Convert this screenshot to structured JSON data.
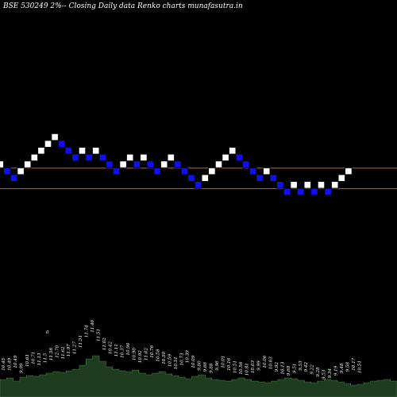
{
  "chart_data": {
    "type": "renko",
    "title": "BSE 530249 2%-- Closing Daily data Renko charts munafasutra.in",
    "colors": {
      "background": "#000000",
      "up_brick": "#ffffff",
      "down_brick": "#1010ee",
      "brick_border": "#000000",
      "guide_line": "#c8641e",
      "volume_fill": "#1e3d1e",
      "volume_stroke": "#4a7a4a"
    },
    "brick_step_levels": [
      0,
      -1,
      -2,
      -1,
      0,
      1,
      2,
      3,
      4,
      3,
      2,
      1,
      2,
      1,
      2,
      1,
      0,
      -1,
      0,
      1,
      0,
      1,
      0,
      -1,
      0,
      1,
      0,
      -1,
      -2,
      -3,
      -2,
      -1,
      0,
      1,
      2,
      1,
      0,
      -1,
      -2,
      -1,
      -2,
      -3,
      -4,
      -3,
      -4,
      -3,
      -4,
      -3,
      -4,
      -3,
      -2,
      -1
    ],
    "guide_levels": [
      -1,
      -4
    ],
    "volume_profile": [
      22,
      24,
      20,
      25,
      27,
      26,
      28,
      30,
      32,
      31,
      33,
      35,
      40,
      48,
      52,
      45,
      38,
      35,
      33,
      32,
      34,
      30,
      28,
      30,
      32,
      29,
      27,
      25,
      23,
      26,
      28,
      24,
      22,
      21,
      20,
      22,
      24,
      22,
      20,
      19,
      18,
      20,
      22,
      24,
      23,
      21,
      19,
      18,
      20,
      22,
      21,
      19,
      17,
      15,
      16,
      18,
      20,
      21,
      22,
      20
    ],
    "tick_labels": [
      "10.45",
      "10.49",
      "10.49",
      "9.99",
      "10.61",
      "10.71",
      "11.13",
      "11.5",
      "11.58",
      "12.70",
      "11.62",
      "11.97",
      "11.27",
      "11.51",
      "11.74",
      "11.46",
      "11.51",
      "11.02",
      "10.42",
      "11.11",
      "10.37",
      "10.90",
      "10.90",
      "10.92",
      "11.02",
      "10.76",
      "10.58",
      "10.50",
      "10.59",
      "10.51",
      "10.73",
      "10.39",
      "10.09",
      "9.80",
      "9.66",
      "9.88",
      "9.96",
      "10.01",
      "10.16",
      "10.51",
      "10.56",
      "10.81",
      "10.03",
      "9.99",
      "10.06",
      "10.03",
      "9.92",
      "10.13",
      "9.68",
      "9.51",
      "9.53",
      "9.42",
      "9.22",
      "9.28",
      "9.53",
      "9.34",
      "9.19",
      "9.48",
      "9.58",
      "10.17",
      "10.51"
    ],
    "annotation": "0",
    "grid": false,
    "legend": "none"
  }
}
